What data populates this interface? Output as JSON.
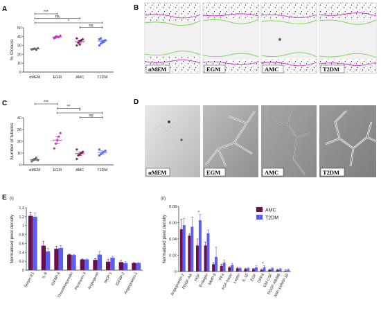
{
  "panels": {
    "a": "A",
    "b": "B",
    "c": "C",
    "d": "D",
    "e": "E",
    "e_i": "(i)",
    "e_ii": "(ii)"
  },
  "colors": {
    "amc": "#6b0f4a",
    "t2dm": "#5b5ef0",
    "egm_magenta": "#cc33cc",
    "amc_purple": "#7a1f5e",
    "t2dm_blue": "#5a6ef0",
    "wound_magenta": "#e020e0",
    "wound_green": "#66cc33"
  },
  "micrographs": {
    "B": [
      "αMEM",
      "EGM",
      "AMC",
      "T2DM"
    ],
    "D": [
      "αMEM",
      "EGM",
      "AMC",
      "T2DM"
    ]
  },
  "chart_data": [
    {
      "panel": "A",
      "type": "scatter",
      "ylabel": "% Closure",
      "categories": [
        "αMEM",
        "EGM",
        "AMC",
        "T2DM"
      ],
      "yticks": [
        0,
        10,
        20,
        30,
        40,
        50
      ],
      "ylim": [
        0,
        50
      ],
      "points": [
        [
          25.5,
          26,
          26.5,
          25,
          27
        ],
        [
          38,
          39,
          40,
          39.5,
          41,
          38.5,
          40
        ],
        [
          30,
          33,
          35,
          36,
          37,
          38,
          33,
          31
        ],
        [
          30,
          32,
          34,
          35,
          36,
          37,
          38,
          33,
          34
        ]
      ],
      "means": [
        26,
        39.5,
        34,
        35
      ],
      "sems": [
        0.5,
        0.8,
        1.2,
        1.0
      ],
      "significance": [
        {
          "from": 0,
          "to": 1,
          "label": "***"
        },
        {
          "from": 0,
          "to": 2,
          "label": "ns"
        },
        {
          "from": 0,
          "to": 3,
          "label": "*"
        },
        {
          "from": 2,
          "to": 3,
          "label": "ns"
        }
      ]
    },
    {
      "panel": "C",
      "type": "scatter",
      "ylabel": "Number of tubules",
      "categories": [
        "αMEM",
        "EGM",
        "AMC",
        "T2DM"
      ],
      "yticks": [
        0,
        10,
        20,
        30,
        40
      ],
      "ylim": [
        0,
        40
      ],
      "points": [
        [
          3,
          4,
          5,
          6,
          4
        ],
        [
          14,
          18,
          21,
          24,
          27
        ],
        [
          5,
          8,
          9,
          10,
          11,
          13
        ],
        [
          8,
          9,
          10,
          11,
          12,
          13
        ]
      ],
      "means": [
        4.5,
        21,
        9.5,
        10.5
      ],
      "sems": [
        0.7,
        3,
        1.5,
        1.3
      ],
      "significance": [
        {
          "from": 0,
          "to": 1,
          "label": "***"
        },
        {
          "from": 1,
          "to": 2,
          "label": "**"
        },
        {
          "from": 1,
          "to": 3,
          "label": "*"
        },
        {
          "from": 2,
          "to": 3,
          "label": "ns"
        }
      ]
    },
    {
      "panel": "E(i)",
      "type": "bar",
      "ylabel": "Normalised pixel density",
      "yticks": [
        0,
        0.2,
        0.4,
        0.6,
        0.8,
        1.0,
        1.2,
        1.4
      ],
      "ylim": [
        0,
        1.4
      ],
      "categories": [
        "Serpin E1",
        "IL-8",
        "IGFBP-3",
        "Thrombospondin",
        "Pentraxin-3",
        "Angiogenin",
        "MCP-1",
        "IGFBP-2",
        "Angiopoietin-1"
      ],
      "series": [
        {
          "name": "AMC",
          "values": [
            1.22,
            0.55,
            0.48,
            0.35,
            0.24,
            0.23,
            0.19,
            0.18,
            0.16
          ],
          "errors": [
            0.08,
            0.1,
            0.06,
            0.01,
            0.01,
            0.03,
            0.05,
            0.04,
            0.01
          ]
        },
        {
          "name": "T2DM",
          "values": [
            1.2,
            0.42,
            0.5,
            0.34,
            0.24,
            0.35,
            0.28,
            0.16,
            0.16
          ],
          "errors": [
            0.08,
            0.07,
            0.05,
            0.01,
            0.01,
            0.07,
            0.03,
            0.03,
            0.01
          ]
        }
      ]
    },
    {
      "panel": "E(ii)",
      "type": "bar",
      "ylabel": "Normalised pixel density",
      "yticks": [
        0,
        0.02,
        0.04,
        0.06,
        0.08
      ],
      "ylim": [
        0,
        0.08
      ],
      "categories": [
        "Angiopoietin-2",
        "PDGF-AA",
        "HGF",
        "Endoglin",
        "MMP-9",
        "PF4",
        "FGF-basic",
        "Leptin",
        "IL-1β",
        "EGF",
        "DPP4",
        "GM-CSF",
        "PDGF-AB/BB",
        "MIP-1α/MIP-1β"
      ],
      "series": [
        {
          "name": "AMC",
          "values": [
            0.052,
            0.044,
            0.032,
            0.032,
            0.009,
            0.007,
            0.005,
            0.004,
            0.003,
            0.003,
            0.002,
            0.002,
            0.002,
            0.001
          ],
          "errors": [
            0.012,
            0.002,
            0.008,
            0.004,
            0.002,
            0.002,
            0.001,
            0.001,
            0.001,
            0.001,
            0.001,
            0.001,
            0.001,
            0.001
          ]
        },
        {
          "name": "T2DM",
          "values": [
            0.057,
            0.055,
            0.063,
            0.047,
            0.018,
            0.011,
            0.008,
            0.004,
            0.004,
            0.005,
            0.005,
            0.004,
            0.003,
            0.002
          ],
          "errors": [
            0.008,
            0.012,
            0.007,
            0.004,
            0.012,
            0.003,
            0.002,
            0.001,
            0.001,
            0.002,
            0.002,
            0.001,
            0.001,
            0.001
          ]
        }
      ],
      "significance": [
        {
          "index": 2,
          "label": "*"
        },
        {
          "index": 10,
          "label": "*"
        }
      ],
      "legend": {
        "position": "top-right",
        "entries": [
          "AMC",
          "T2DM"
        ]
      }
    }
  ]
}
